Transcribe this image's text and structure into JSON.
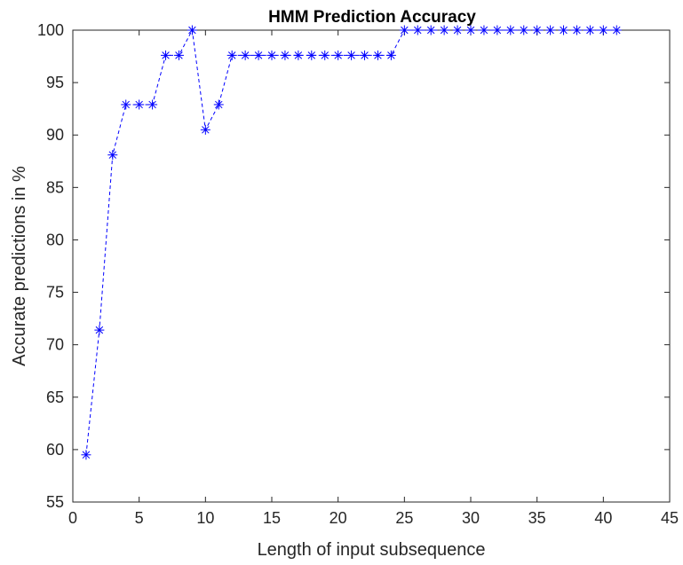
{
  "chart_data": {
    "type": "line",
    "title": "HMM Prediction Accuracy",
    "xlabel": "Length of input subsequence",
    "ylabel": "Accurate predictions in %",
    "xlim": [
      0,
      45
    ],
    "ylim": [
      55,
      100
    ],
    "xticks": [
      0,
      5,
      10,
      15,
      20,
      25,
      30,
      35,
      40,
      45
    ],
    "yticks": [
      55,
      60,
      65,
      70,
      75,
      80,
      85,
      90,
      95,
      100
    ],
    "grid": false,
    "line_style": "dashed",
    "marker": "asterisk",
    "color": "#0000ff",
    "x": [
      1,
      2,
      3,
      4,
      5,
      6,
      7,
      8,
      9,
      10,
      11,
      12,
      13,
      14,
      15,
      16,
      17,
      18,
      19,
      20,
      21,
      22,
      23,
      24,
      25,
      26,
      27,
      28,
      29,
      30,
      31,
      32,
      33,
      34,
      35,
      36,
      37,
      38,
      39,
      40,
      41
    ],
    "y": [
      59.5,
      71.4,
      88.1,
      92.9,
      92.9,
      92.9,
      97.6,
      97.6,
      100,
      90.5,
      92.9,
      97.6,
      97.6,
      97.6,
      97.6,
      97.6,
      97.6,
      97.6,
      97.6,
      97.6,
      97.6,
      97.6,
      97.6,
      97.6,
      100,
      100,
      100,
      100,
      100,
      100,
      100,
      100,
      100,
      100,
      100,
      100,
      100,
      100,
      100,
      100,
      100
    ]
  }
}
